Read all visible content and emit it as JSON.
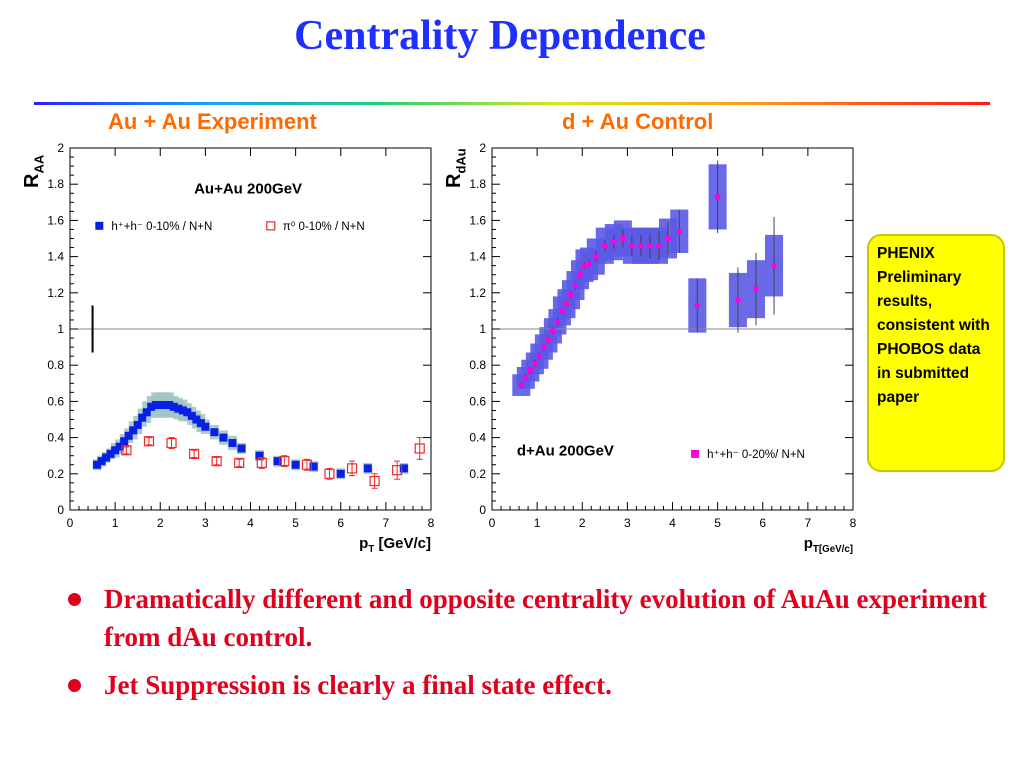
{
  "slide": {
    "title": "Centrality Dependence",
    "left_heading": "Au + Au Experiment",
    "right_heading": "d + Au Control",
    "note_box": "PHENIX Preliminary results, consistent with PHOBOS data in submitted paper",
    "bullets": [
      "Dramatically different and opposite centrality evolution of AuAu experiment from dAu control.",
      "Jet Suppression is clearly a final state effect."
    ],
    "colors": {
      "title": "#1f2fff",
      "headings": "#ff6a00",
      "bullets": "#e0001e",
      "note_box": "#ffff00"
    }
  },
  "chart_data": [
    {
      "type": "scatter",
      "title": "Au+Au 200GeV",
      "xlabel": "p_T [GeV/c]",
      "ylabel": "R_AA",
      "xlim": [
        0,
        8
      ],
      "ylim": [
        0,
        2
      ],
      "xticks": [
        "0",
        "1",
        "2",
        "3",
        "4",
        "5",
        "6",
        "7",
        "8"
      ],
      "yticks": [
        "0",
        "0.2",
        "0.4",
        "0.6",
        "0.8",
        "1",
        "1.2",
        "1.4",
        "1.6",
        "1.8",
        "2"
      ],
      "reference_line": 1,
      "normalization_bar": {
        "x": 0.5,
        "low": 0.87,
        "high": 1.13
      },
      "series": [
        {
          "name": "h⁺+h⁻ 0-10% / N+N",
          "marker": "filled-square",
          "color": "#0a1fe6",
          "band_color": "#9fc4c4",
          "x": [
            0.6,
            0.7,
            0.8,
            0.9,
            1.0,
            1.1,
            1.2,
            1.3,
            1.4,
            1.5,
            1.6,
            1.7,
            1.8,
            1.9,
            2.0,
            2.1,
            2.2,
            2.3,
            2.4,
            2.5,
            2.6,
            2.7,
            2.8,
            2.9,
            3.0,
            3.2,
            3.4,
            3.6,
            3.8,
            4.2,
            4.6,
            5.0,
            5.4,
            6.0,
            6.6,
            7.4
          ],
          "y": [
            0.25,
            0.27,
            0.29,
            0.31,
            0.33,
            0.35,
            0.38,
            0.41,
            0.44,
            0.47,
            0.51,
            0.54,
            0.57,
            0.58,
            0.58,
            0.58,
            0.58,
            0.57,
            0.56,
            0.55,
            0.54,
            0.52,
            0.5,
            0.48,
            0.46,
            0.43,
            0.4,
            0.37,
            0.34,
            0.3,
            0.27,
            0.25,
            0.24,
            0.2,
            0.23,
            0.23
          ],
          "band": [
            0.03,
            0.03,
            0.03,
            0.03,
            0.04,
            0.04,
            0.04,
            0.04,
            0.05,
            0.05,
            0.05,
            0.06,
            0.06,
            0.07,
            0.07,
            0.07,
            0.07,
            0.06,
            0.06,
            0.06,
            0.05,
            0.05,
            0.05,
            0.05,
            0.04,
            0.04,
            0.04,
            0.04,
            0.03,
            0.03,
            0.03,
            0.03,
            0.03,
            0.03,
            0.03,
            0.03
          ]
        },
        {
          "name": "π⁰ 0-10% / N+N",
          "marker": "open-square",
          "color": "#f02828",
          "x": [
            1.25,
            1.75,
            2.25,
            2.75,
            3.25,
            3.75,
            4.25,
            4.75,
            5.25,
            5.75,
            6.25,
            6.75,
            7.25,
            7.75
          ],
          "y": [
            0.33,
            0.38,
            0.37,
            0.31,
            0.27,
            0.26,
            0.26,
            0.27,
            0.25,
            0.2,
            0.23,
            0.16,
            0.22,
            0.34
          ],
          "err": [
            0.02,
            0.02,
            0.03,
            0.02,
            0.02,
            0.02,
            0.03,
            0.03,
            0.03,
            0.03,
            0.04,
            0.04,
            0.05,
            0.06
          ]
        }
      ]
    },
    {
      "type": "scatter",
      "title": "d+Au 200GeV",
      "xlabel": "p_T[GeV/c]",
      "ylabel": "R_dAu",
      "xlim": [
        0,
        8
      ],
      "ylim": [
        0,
        2
      ],
      "xticks": [
        "0",
        "1",
        "2",
        "3",
        "4",
        "5",
        "6",
        "7",
        "8"
      ],
      "yticks": [
        "0",
        "0.2",
        "0.4",
        "0.6",
        "0.8",
        "1",
        "1.2",
        "1.4",
        "1.6",
        "1.8",
        "2"
      ],
      "reference_line": 1,
      "series": [
        {
          "name": "h⁺+h⁻ 0-20%/ N+N",
          "marker": "filled-square",
          "color": "#ff00e0",
          "band_color": "#5a5ae6",
          "x": [
            0.65,
            0.75,
            0.85,
            0.95,
            1.05,
            1.15,
            1.25,
            1.35,
            1.45,
            1.55,
            1.65,
            1.75,
            1.85,
            1.95,
            2.05,
            2.15,
            2.3,
            2.5,
            2.7,
            2.9,
            3.1,
            3.3,
            3.5,
            3.7,
            3.9,
            4.15,
            4.55,
            5.0,
            5.45,
            5.85,
            6.25
          ],
          "y": [
            0.69,
            0.73,
            0.77,
            0.81,
            0.85,
            0.9,
            0.94,
            0.99,
            1.04,
            1.1,
            1.14,
            1.19,
            1.24,
            1.3,
            1.35,
            1.36,
            1.4,
            1.46,
            1.48,
            1.5,
            1.46,
            1.46,
            1.46,
            1.46,
            1.5,
            1.54,
            1.13,
            1.73,
            1.16,
            1.22,
            1.35
          ],
          "err": [
            0.02,
            0.02,
            0.02,
            0.02,
            0.02,
            0.02,
            0.02,
            0.02,
            0.02,
            0.02,
            0.02,
            0.02,
            0.02,
            0.02,
            0.02,
            0.02,
            0.03,
            0.03,
            0.04,
            0.05,
            0.06,
            0.06,
            0.07,
            0.08,
            0.09,
            0.12,
            0.15,
            0.2,
            0.18,
            0.2,
            0.27
          ],
          "band": [
            0.06,
            0.06,
            0.06,
            0.06,
            0.07,
            0.07,
            0.07,
            0.07,
            0.07,
            0.08,
            0.08,
            0.08,
            0.08,
            0.08,
            0.09,
            0.09,
            0.1,
            0.1,
            0.1,
            0.1,
            0.1,
            0.1,
            0.1,
            0.1,
            0.11,
            0.12,
            0.15,
            0.18,
            0.15,
            0.16,
            0.17
          ]
        }
      ]
    }
  ]
}
